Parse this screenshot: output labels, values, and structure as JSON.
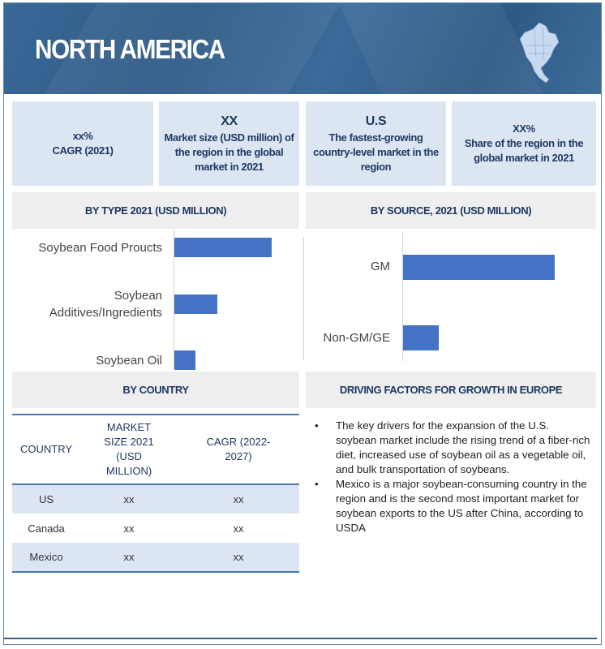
{
  "header": {
    "title": "NORTH AMERICA",
    "icon": "north-america-map-icon"
  },
  "stats": [
    {
      "value": "xx%",
      "label": "CAGR (2021)"
    },
    {
      "value": "XX",
      "label": "Market size (USD million) of the region in the global market in 2021"
    },
    {
      "value": "U.S",
      "label": "The fastest-growing country-level market in the region"
    },
    {
      "value": "XX%",
      "label": "Share of the region in the global market in 2021"
    }
  ],
  "sections": {
    "by_type": "BY TYPE 2021 (USD MILLION)",
    "by_source": "BY SOURCE, 2021 (USD MILLION)",
    "by_country": "BY COUNTRY",
    "drivers": "DRIVING FACTORS FOR GROWTH IN EUROPE"
  },
  "chart_data": [
    {
      "type": "bar",
      "orientation": "horizontal",
      "title": "BY TYPE 2021 (USD MILLION)",
      "categories": [
        "Soybean Food Proucts",
        "Soybean Additives/Ingredients",
        "Soybean Oil"
      ],
      "values": [
        120,
        53,
        26
      ],
      "color": "#4472c4",
      "grid": false
    },
    {
      "type": "bar",
      "orientation": "horizontal",
      "title": "BY SOURCE, 2021 (USD MILLION)",
      "categories": [
        "GM",
        "Non-GM/GE"
      ],
      "values": [
        187,
        44
      ],
      "color": "#4472c4",
      "grid": false
    }
  ],
  "table": {
    "headers": [
      "COUNTRY",
      "MARKET SIZE 2021 (USD MILLION)",
      "CAGR (2022-2027)"
    ],
    "rows": [
      [
        "US",
        "xx",
        "xx"
      ],
      [
        "Canada",
        "xx",
        "xx"
      ],
      [
        "Mexico",
        "xx",
        "xx"
      ]
    ]
  },
  "drivers": [
    "The key drivers for the expansion of the U.S. soybean market include the rising trend of a fiber-rich diet, increased use of soybean oil as a vegetable oil, and bulk transportation of soybeans.",
    "Mexico is a major soybean-consuming country in the region and is the second most important market for soybean exports to the US after China, according to USDA"
  ]
}
